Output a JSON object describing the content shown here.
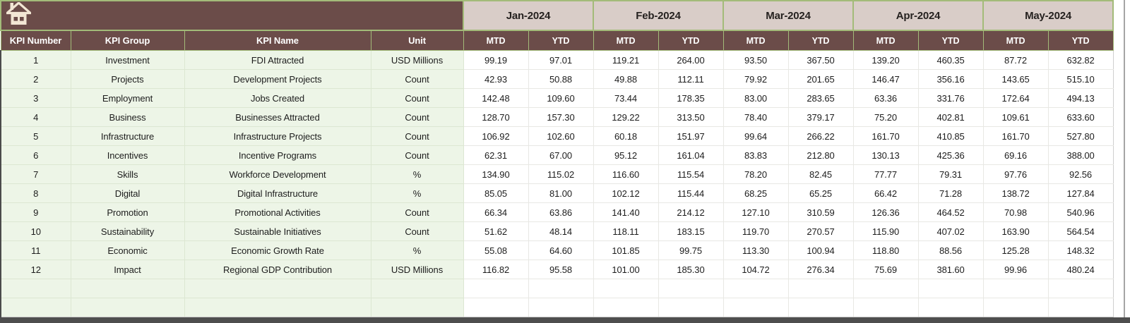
{
  "colors": {
    "header_brown": "#6b4c49",
    "month_header_bg": "#d9cdc8",
    "border_green": "#a3bb79",
    "row_label_bg_green": "#edf5e7",
    "value_cell_bg": "#ffffff",
    "window_bottom_bar": "#4e4e4e"
  },
  "table": {
    "corner_icon": "home-icon",
    "months": [
      "Jan-2024",
      "Feb-2024",
      "Mar-2024",
      "Apr-2024",
      "May-2024"
    ],
    "sub_mtd": "MTD",
    "sub_ytd": "YTD",
    "columns": [
      "KPI Number",
      "KPI Group",
      "KPI Name",
      "Unit"
    ],
    "empty_row_count": 2,
    "rows": [
      {
        "number": "1",
        "group": "Investment",
        "name": "FDI Attracted",
        "unit": "USD Millions",
        "values": [
          "99.19",
          "97.01",
          "119.21",
          "264.00",
          "93.50",
          "367.50",
          "139.20",
          "460.35",
          "87.72",
          "632.82"
        ]
      },
      {
        "number": "2",
        "group": "Projects",
        "name": "Development Projects",
        "unit": "Count",
        "values": [
          "42.93",
          "50.88",
          "49.88",
          "112.11",
          "79.92",
          "201.65",
          "146.47",
          "356.16",
          "143.65",
          "515.10"
        ]
      },
      {
        "number": "3",
        "group": "Employment",
        "name": "Jobs Created",
        "unit": "Count",
        "values": [
          "142.48",
          "109.60",
          "73.44",
          "178.35",
          "83.00",
          "283.65",
          "63.36",
          "331.76",
          "172.64",
          "494.13"
        ]
      },
      {
        "number": "4",
        "group": "Business",
        "name": "Businesses Attracted",
        "unit": "Count",
        "values": [
          "128.70",
          "157.30",
          "129.22",
          "313.50",
          "78.40",
          "379.17",
          "75.20",
          "402.81",
          "109.61",
          "633.60"
        ]
      },
      {
        "number": "5",
        "group": "Infrastructure",
        "name": "Infrastructure Projects",
        "unit": "Count",
        "values": [
          "106.92",
          "102.60",
          "60.18",
          "151.97",
          "99.64",
          "266.22",
          "161.70",
          "410.85",
          "161.70",
          "527.80"
        ]
      },
      {
        "number": "6",
        "group": "Incentives",
        "name": "Incentive Programs",
        "unit": "Count",
        "values": [
          "62.31",
          "67.00",
          "95.12",
          "161.04",
          "83.83",
          "212.80",
          "130.13",
          "425.36",
          "69.16",
          "388.00"
        ]
      },
      {
        "number": "7",
        "group": "Skills",
        "name": "Workforce Development",
        "unit": "%",
        "values": [
          "134.90",
          "115.02",
          "116.60",
          "115.54",
          "78.20",
          "82.45",
          "77.77",
          "79.31",
          "97.76",
          "92.56"
        ]
      },
      {
        "number": "8",
        "group": "Digital",
        "name": "Digital Infrastructure",
        "unit": "%",
        "values": [
          "85.05",
          "81.00",
          "102.12",
          "115.44",
          "68.25",
          "65.25",
          "66.42",
          "71.28",
          "138.72",
          "127.84"
        ]
      },
      {
        "number": "9",
        "group": "Promotion",
        "name": "Promotional Activities",
        "unit": "Count",
        "values": [
          "66.34",
          "63.86",
          "141.40",
          "214.12",
          "127.10",
          "310.59",
          "126.36",
          "464.52",
          "70.98",
          "540.96"
        ]
      },
      {
        "number": "10",
        "group": "Sustainability",
        "name": "Sustainable Initiatives",
        "unit": "Count",
        "values": [
          "51.62",
          "48.14",
          "118.11",
          "183.15",
          "119.70",
          "270.57",
          "115.90",
          "407.02",
          "163.90",
          "564.54"
        ]
      },
      {
        "number": "11",
        "group": "Economic",
        "name": "Economic Growth Rate",
        "unit": "%",
        "values": [
          "55.08",
          "64.60",
          "101.85",
          "99.75",
          "113.30",
          "100.94",
          "118.80",
          "88.56",
          "125.28",
          "148.32"
        ]
      },
      {
        "number": "12",
        "group": "Impact",
        "name": "Regional GDP Contribution",
        "unit": "USD Millions",
        "values": [
          "116.82",
          "95.58",
          "101.00",
          "185.30",
          "104.72",
          "276.34",
          "75.69",
          "381.60",
          "99.96",
          "480.24"
        ]
      }
    ]
  }
}
